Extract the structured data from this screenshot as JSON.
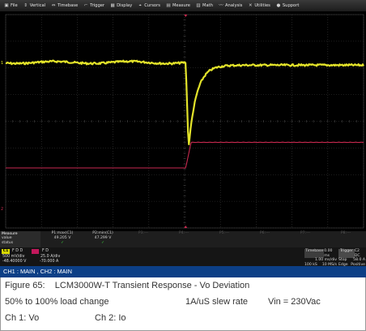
{
  "menu": [
    {
      "icon": "file-icon",
      "glyph": "▣",
      "label": "File"
    },
    {
      "icon": "vertical-icon",
      "glyph": "⇕",
      "label": "Vertical"
    },
    {
      "icon": "timebase-icon",
      "glyph": "⇔",
      "label": "Timebase"
    },
    {
      "icon": "trigger-icon",
      "glyph": "⌐",
      "label": "Trigger"
    },
    {
      "icon": "display-icon",
      "glyph": "▦",
      "label": "Display"
    },
    {
      "icon": "cursors-icon",
      "glyph": "⌖",
      "label": "Cursors"
    },
    {
      "icon": "measure-icon",
      "glyph": "▤",
      "label": "Measure"
    },
    {
      "icon": "math-icon",
      "glyph": "▥",
      "label": "Math"
    },
    {
      "icon": "analysis-icon",
      "glyph": "〰",
      "label": "Analysis"
    },
    {
      "icon": "utilities-icon",
      "glyph": "✕",
      "label": "Utilities"
    },
    {
      "icon": "support-icon",
      "glyph": "●",
      "label": "Support"
    }
  ],
  "colors": {
    "ch1": "#e3e32a",
    "ch2": "#c8294f",
    "grid": "#3a3a3a",
    "statusbar": "#0c3f86"
  },
  "measure": {
    "header": [
      "Measure",
      "value",
      "status"
    ],
    "columns": [
      {
        "label": "P1:max(C1)",
        "value": "49.205 V",
        "status": "✓"
      },
      {
        "label": "P2:min(C1)",
        "value": "47.299 V",
        "status": "✓"
      },
      {
        "label": "P3:---",
        "value": "",
        "status": ""
      },
      {
        "label": "P4:---",
        "value": "",
        "status": ""
      },
      {
        "label": "P5:---",
        "value": "",
        "status": ""
      },
      {
        "label": "P6:---",
        "value": "",
        "status": ""
      },
      {
        "label": "P7:---",
        "value": "",
        "status": ""
      },
      {
        "label": "P8:---",
        "value": "",
        "status": ""
      }
    ]
  },
  "channels": {
    "c1": {
      "badge": "C1",
      "flags": "F  D  D",
      "scale": "500 mV/div",
      "offset": "-48.40000 V"
    },
    "c2": {
      "flags": "F  D",
      "scale": "25.0 A/div",
      "offset": "-70.000 A"
    }
  },
  "timebase": {
    "label": "Timebase",
    "delay": "0.00 ms",
    "rate": "1.00 ms/div",
    "samples": "100 kS",
    "srate": "10 MS/s"
  },
  "trigger": {
    "label": "Trigger",
    "badge": "C2 DC",
    "mode": "Stop",
    "type": "Edge",
    "level": "58.0 A",
    "slope": "Positive"
  },
  "markers": {
    "ch1": "1",
    "ch2": "2"
  },
  "status_text": "CH1 : MAIN , CH2 : MAIN",
  "caption": {
    "line1": "Figure 65:    LCM3000W-T Transient Response - Vo Deviation",
    "line2_left": "50% to 100% load change",
    "line2_mid": "1A/uS slew rate",
    "line2_right": "Vin = 230Vac",
    "line3_left": "Ch 1: Vo",
    "line3_right": "Ch 2: Io"
  },
  "waveforms": {
    "ch1_volts_per_div": 0.5,
    "ch2_amps_per_div": 25,
    "time_per_div_ms": 1,
    "step_time_ms": 0,
    "ch1_before_V": 48.9,
    "ch1_min_V": 47.299,
    "ch1_after_V": 48.85,
    "ch2_before_A": 24,
    "ch2_after_A": 48
  }
}
